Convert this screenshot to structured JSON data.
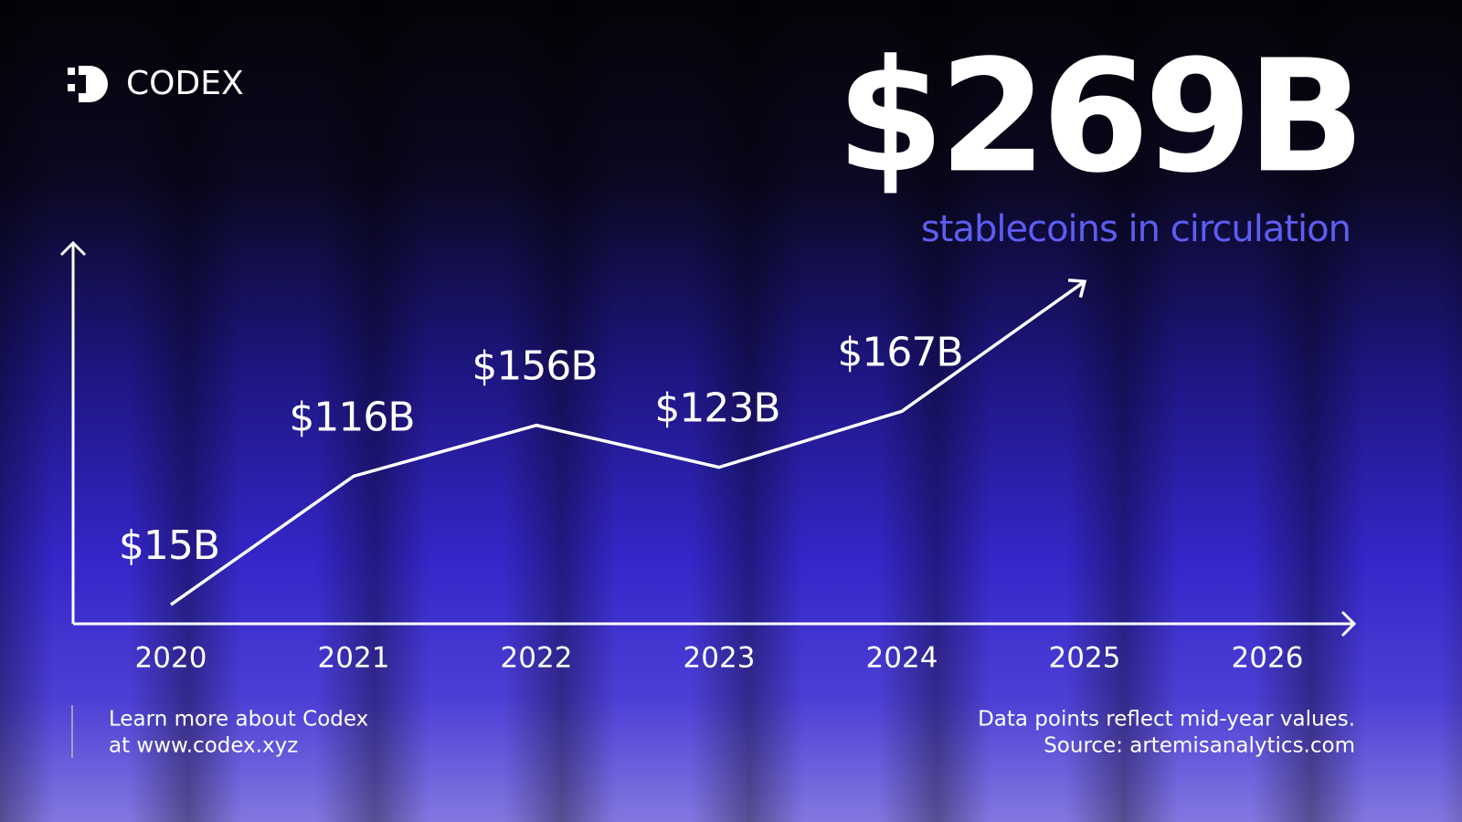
{
  "brand": "CODEX",
  "headline": "$269B",
  "subheadline": "stablecoins in circulation",
  "footer_left": [
    "Learn more about Codex",
    "at www.codex.xyz"
  ],
  "footer_right": [
    "Data points reflect mid-year values.",
    "Source: artemisanalytics.com"
  ],
  "chart_data": {
    "type": "line",
    "categories": [
      "2020",
      "2021",
      "2022",
      "2023",
      "2024",
      "2025",
      "2026"
    ],
    "values": [
      15,
      116,
      156,
      123,
      167,
      269,
      null
    ],
    "value_labels": [
      "$15B",
      "$116B",
      "$156B",
      "$123B",
      "$167B",
      null,
      null
    ],
    "color": "#ffffff",
    "ylim": [
      0,
      300
    ]
  }
}
